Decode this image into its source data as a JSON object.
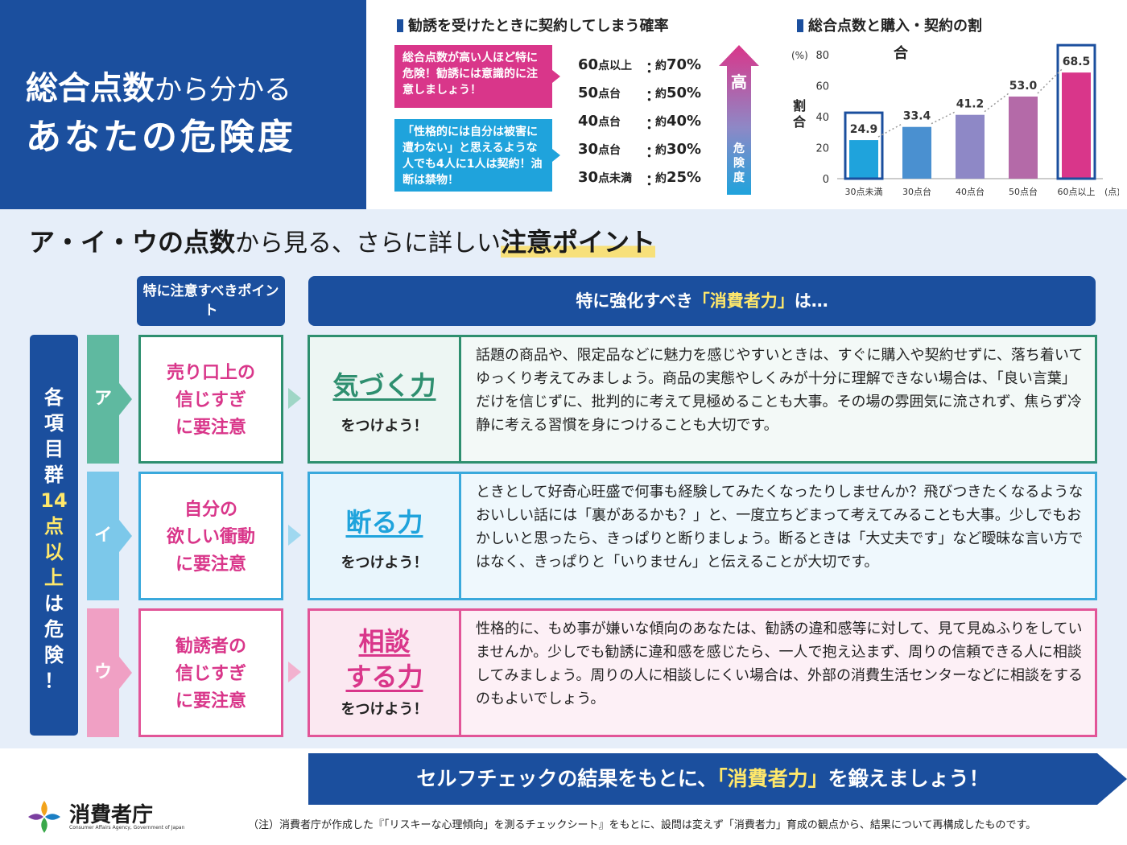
{
  "title": {
    "line1_bold": "総合点数",
    "line1_rest": "から分かる",
    "line2": "あなたの危険度"
  },
  "prob_section": {
    "heading": "勧誘を受けたときに契約してしまう確率",
    "bubble_pink": "総合点数が高い人ほど特に危険！勧誘には意識的に注意しましょう！",
    "bubble_blue": "「性格的には自分は被害に遭わない」と思えるような人でも4人に1人は契約！油断は禁物！",
    "rows": [
      {
        "score": "60",
        "unit": "点以上",
        "colon": "：",
        "val_prefix": "約",
        "val": "70%"
      },
      {
        "score": "50",
        "unit": "点台",
        "colon": "：",
        "val_prefix": "約",
        "val": "50%"
      },
      {
        "score": "40",
        "unit": "点台",
        "colon": "：",
        "val_prefix": "約",
        "val": "40%"
      },
      {
        "score": "30",
        "unit": "点台",
        "colon": "：",
        "val_prefix": "約",
        "val": "30%"
      },
      {
        "score": "30",
        "unit": "点未満",
        "colon": "：",
        "val_prefix": "約",
        "val": "25%"
      }
    ],
    "arrow_high": "高",
    "arrow_label": "危険度"
  },
  "chart_section": {
    "heading_line1": "総合点数と購入・契約の割",
    "heading_line2": "合",
    "ylabel": "割合",
    "yunit": "(%)",
    "xunit": "(点)"
  },
  "chart_data": {
    "type": "bar",
    "title": "総合点数と購入・契約の割合",
    "categories": [
      "30点未満",
      "30点台",
      "40点台",
      "50点台",
      "60点以上"
    ],
    "values": [
      24.9,
      33.4,
      41.2,
      53.0,
      68.5
    ],
    "value_labels": [
      "24.9",
      "33.4",
      "41.2",
      "53.0",
      "68.5"
    ],
    "ylabel": "割合",
    "ylim": [
      0,
      80
    ],
    "yticks": [
      0,
      20,
      40,
      60,
      80
    ],
    "colors": [
      "#1fa3dc",
      "#4a90d0",
      "#8e88c6",
      "#b46aa8",
      "#d9368a"
    ],
    "highlighted": [
      "30点未満",
      "60点以上"
    ],
    "grid": false
  },
  "middle": {
    "title_bold1": "ア・イ・ウの点数",
    "title_norm": "から見る、さらに詳しい",
    "title_bold2": "注意ポイント",
    "hdr_left": "特に注意すべきポイント",
    "hdr_right_pre": "特に強化すべき",
    "hdr_right_hl": "「消費者力」",
    "hdr_right_post": "は…",
    "left_bar_pre": "各項目群",
    "left_bar_hl": "14点以上",
    "left_bar_post": "は危険！",
    "rows": [
      {
        "tab": "ア",
        "point": "売り口上の信じすぎに要注意",
        "power": "気づく力",
        "power_sub": "をつけよう！",
        "desc": "話題の商品や、限定品などに魅力を感じやすいときは、すぐに購入や契約せずに、落ち着いてゆっくり考えてみましょう。商品の実態やしくみが十分に理解できない場合は、「良い言葉」だけを信じずに、批判的に考えて見極めることも大事。その場の雰囲気に流されず、焦らず冷静に考える習慣を身につけることも大切です。"
      },
      {
        "tab": "イ",
        "point": "自分の欲しい衝動に要注意",
        "power": "断る力",
        "power_sub": "をつけよう！",
        "desc": "ときとして好奇心旺盛で何事も経験してみたくなったりしませんか？飛びつきたくなるようなおいしい話には「裏があるかも？」と、一度立ちどまって考えてみることも大事。少しでもおかしいと思ったら、きっぱりと断りましょう。断るときは「大丈夫です」など曖昧な言い方ではなく、きっぱりと「いりません」と伝えることが大切です。"
      },
      {
        "tab": "ウ",
        "point": "勧誘者の信じすぎに要注意",
        "power": "相談する力",
        "power_sub": "をつけよう！",
        "desc": "性格的に、もめ事が嫌いな傾向のあなたは、勧誘の違和感等に対して、見て見ぬふりをしていませんか。少しでも勧誘に違和感を感じたら、一人で抱え込まず、周りの信頼できる人に相談してみましょう。周りの人に相談しにくい場合は、外部の消費生活センターなどに相談をするのもよいでしょう。"
      }
    ]
  },
  "footer": {
    "banner_pre": "セルフチェックの結果をもとに、",
    "banner_hl": "「消費者力」",
    "banner_post": "を鍛えましょう！",
    "logo_name": "消費者庁",
    "logo_sub": "Consumer Affairs Agency, Government of Japan",
    "note": "（注）消費者庁が作成した『「リスキーな心理傾向」を測るチェックシート』をもとに、設問は変えず「消費者力」育成の観点から、結果について再構成したものです。"
  }
}
